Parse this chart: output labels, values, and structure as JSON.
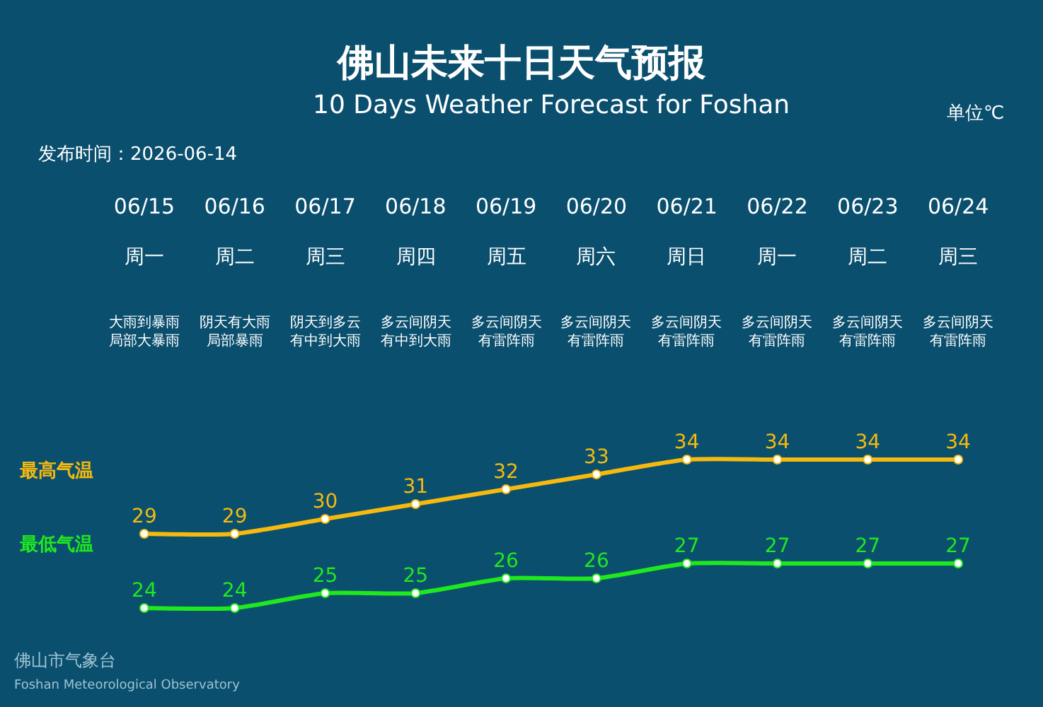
{
  "chart_data": {
    "type": "line",
    "title": "佛山未来十日天气预报",
    "subtitle": "10 Days Weather Forecast for Foshan",
    "categories": [
      "06/15",
      "06/16",
      "06/17",
      "06/18",
      "06/19",
      "06/20",
      "06/21",
      "06/22",
      "06/23",
      "06/24"
    ],
    "series": [
      {
        "name": "最高气温",
        "color": "#f5b90f",
        "values": [
          29,
          29,
          30,
          31,
          32,
          33,
          34,
          34,
          34,
          34
        ]
      },
      {
        "name": "最低气温",
        "color": "#1fe81f",
        "values": [
          24,
          24,
          25,
          25,
          26,
          26,
          27,
          27,
          27,
          27
        ]
      }
    ],
    "data_labels": true,
    "marker": "circle",
    "line_style": "solid",
    "legend": false,
    "grid": false,
    "tick_labels": "x",
    "annotations": [
      "单位℃",
      "发布时间：2026-06-14",
      "佛山市气象台",
      "Foshan Meteorological Observatory",
      "周一",
      "大雨到暴雨局部大暴雨",
      "周二",
      "阴天有大雨局部暴雨",
      "周三",
      "阴天到多云有中到大雨",
      "周四",
      "多云间阴天有中到大雨",
      "周五",
      "多云间阴天有雷阵雨",
      "周六",
      "多云间阴天有雷阵雨",
      "周日",
      "多云间阴天有雷阵雨",
      "周一",
      "多云间阴天有雷阵雨",
      "周二",
      "多云间阴天有雷阵雨",
      "周三",
      "多云间阴天有雷阵雨"
    ]
  }
}
